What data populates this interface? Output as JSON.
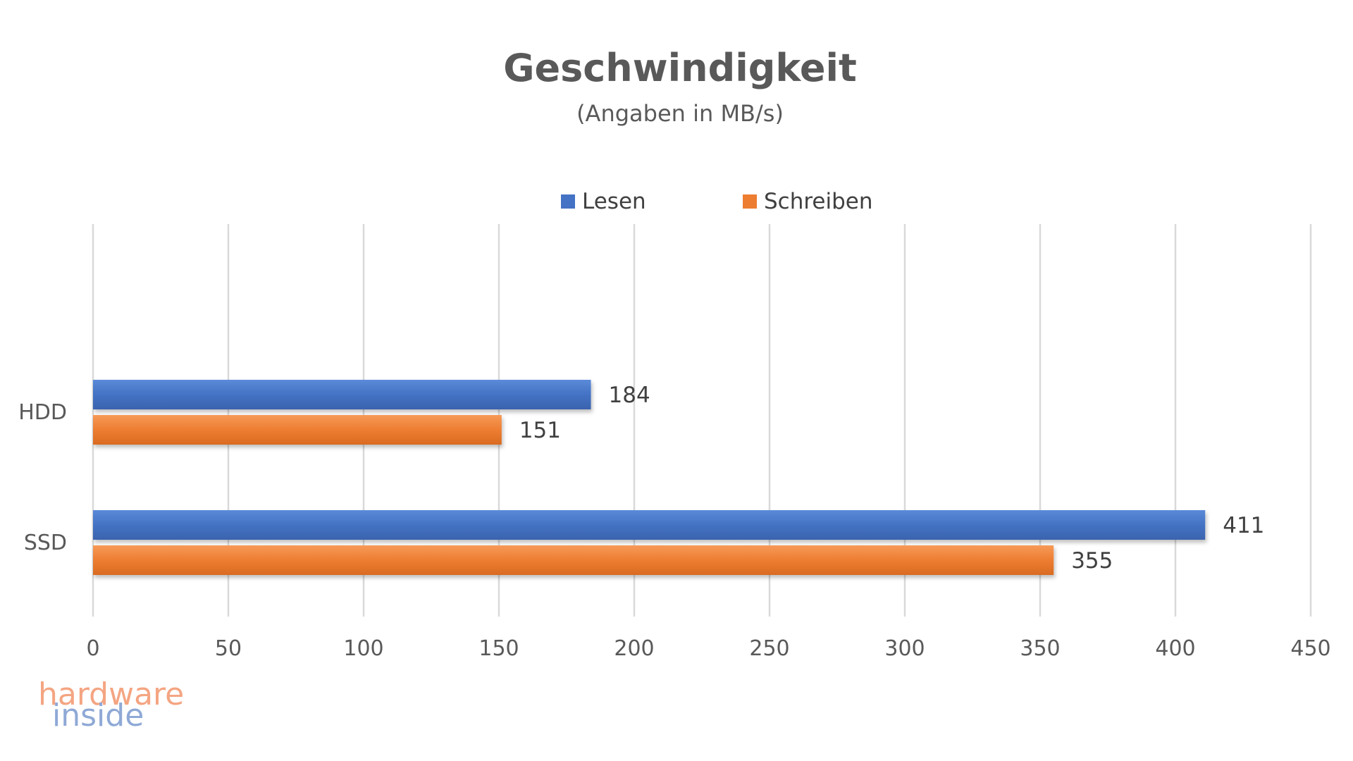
{
  "chart_data": {
    "type": "bar",
    "orientation": "horizontal",
    "title": "Geschwindigkeit",
    "subtitle": "(Angaben in MB/s)",
    "categories": [
      "HDD",
      "SSD"
    ],
    "series": [
      {
        "name": "Lesen",
        "color": "#4472C4",
        "values": [
          184,
          411
        ]
      },
      {
        "name": "Schreiben",
        "color": "#ED7D31",
        "values": [
          151,
          355
        ]
      }
    ],
    "xlim": [
      0,
      450
    ],
    "xticks": [
      "0",
      "50",
      "100",
      "150",
      "200",
      "250",
      "300",
      "350",
      "400",
      "450"
    ],
    "grid": true,
    "legend_position": "top"
  },
  "watermark": {
    "line1": "hardware",
    "line2": "inside",
    "color1": "#F4A582",
    "color2": "#8FA9D6"
  }
}
